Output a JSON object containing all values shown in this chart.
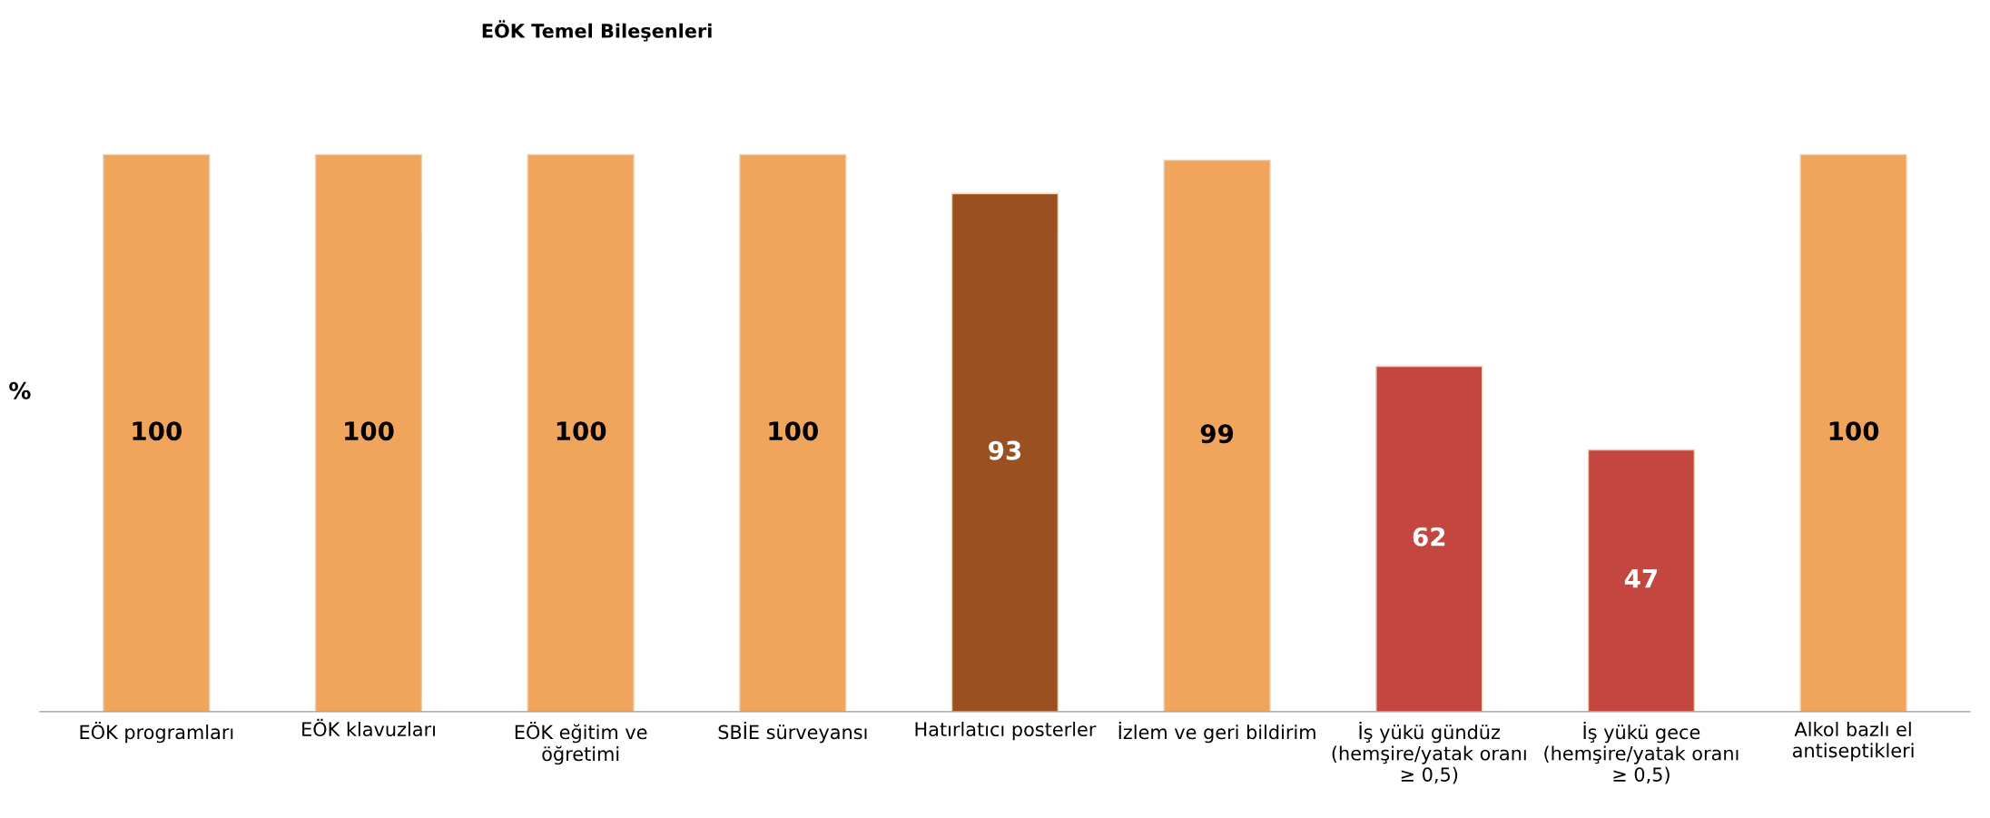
{
  "chart_data": {
    "type": "bar",
    "title": "EÖK Temel Bileşenleri",
    "ylabel": "%",
    "categories": [
      "EÖK programları",
      "EÖK klavuzları",
      "EÖK eğitim ve\nöğretimi",
      "SBİE sürveyansı",
      "Hatırlatıcı posterler",
      "İzlem ve geri bildirim",
      "İş yükü gündüz\n(hemşire/yatak oranı\n≥ 0,5)",
      "İş yükü gece\n(hemşire/yatak oranı\n≥ 0,5)",
      "Alkol bazlı el\nantiseptikleri"
    ],
    "values": [
      100,
      100,
      100,
      100,
      93,
      99,
      62,
      47,
      100
    ],
    "colors": [
      "#f0a45c",
      "#f0a45c",
      "#f0a45c",
      "#f0a45c",
      "#9a5020",
      "#f0a45c",
      "#c4473f",
      "#c4473f",
      "#f0a45c"
    ],
    "data_labels": true,
    "grid": false,
    "legend": false,
    "tick_labels": "x"
  }
}
